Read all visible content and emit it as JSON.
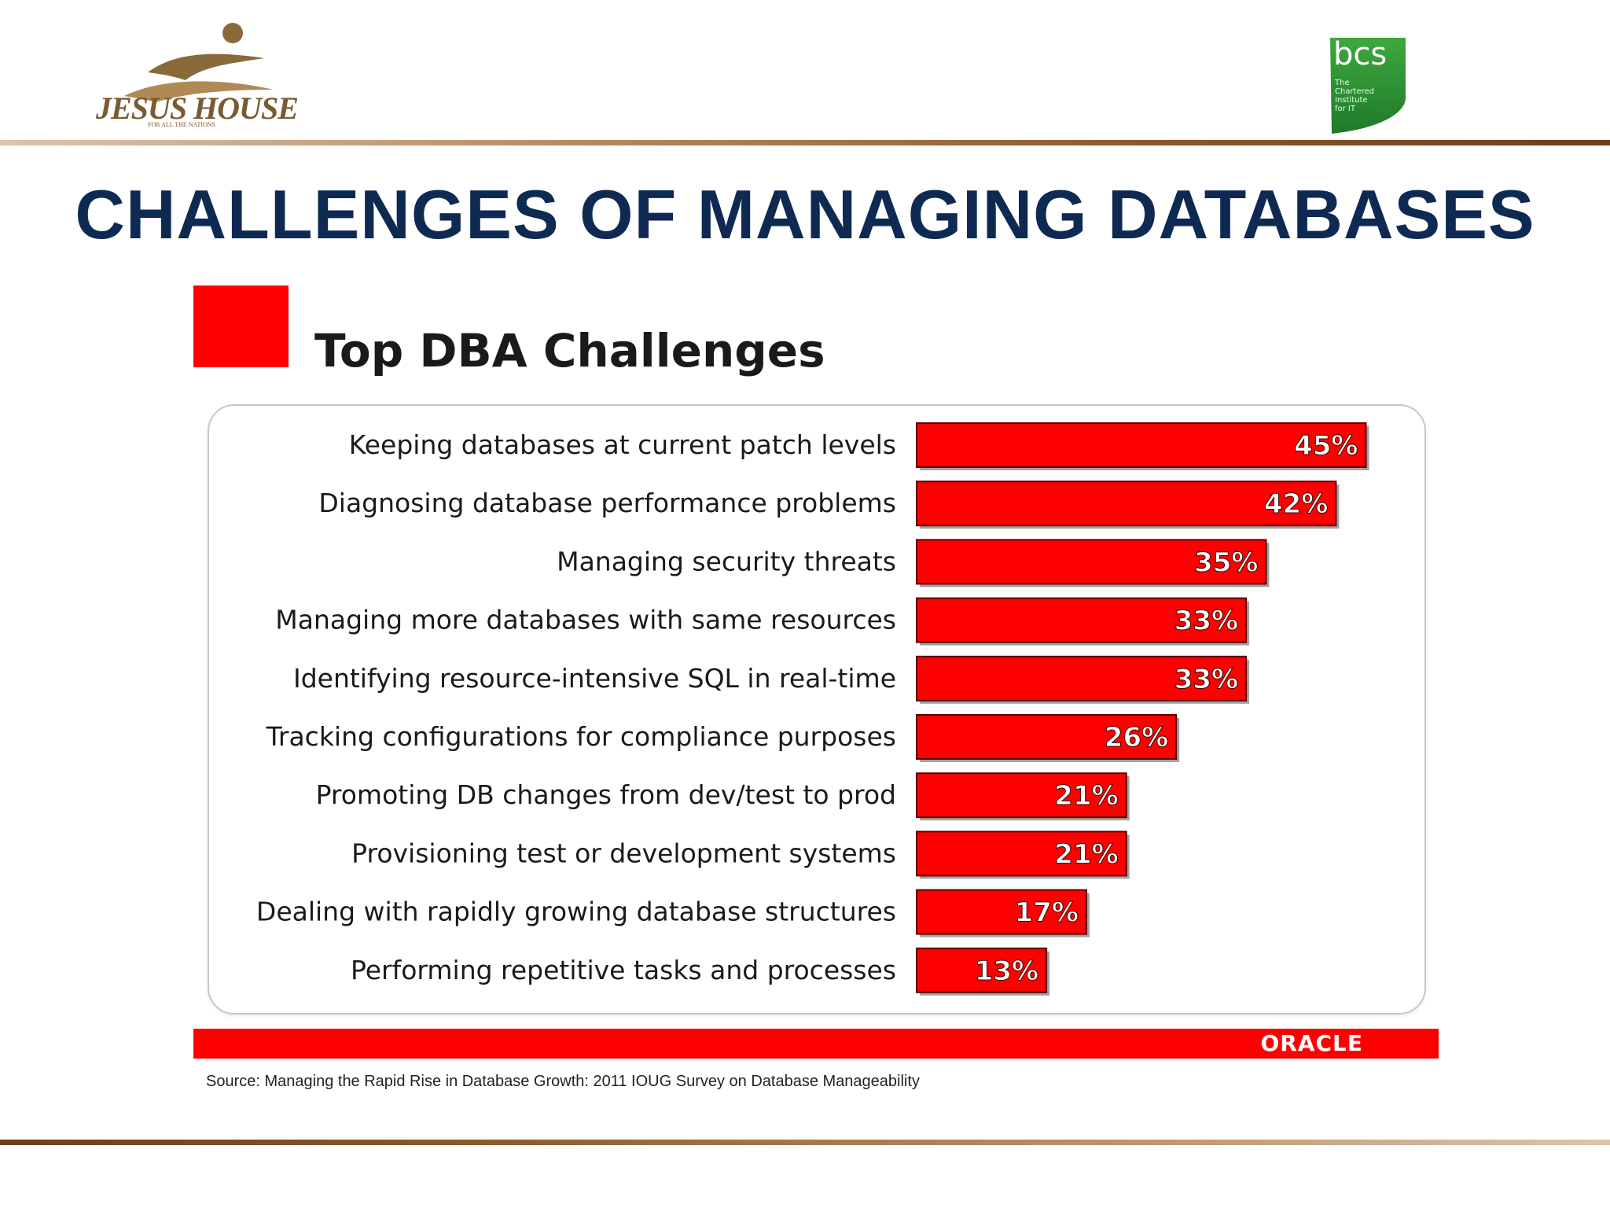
{
  "slide": {
    "title": "CHALLENGES OF MANAGING DATABASES",
    "logo_left_text": "JESUS HOUSE",
    "logo_left_tagline": "FOR ALL THE NATIONS",
    "logo_right_text": "bcs",
    "logo_right_sub": [
      "The",
      "Chartered",
      "Institute",
      "for IT"
    ],
    "footer_brand": "ORACLE",
    "source": "Source: Managing the Rapid Rise in Database Growth: 2011 IOUG Survey on Database Manageability"
  },
  "colors": {
    "title": "#0f2a52",
    "bar": "#ff0000",
    "accent_red": "#ff0000",
    "rule_brown": "#8c5a2e",
    "bcs_green": "#3a9a3a"
  },
  "chart_data": {
    "type": "bar",
    "orientation": "horizontal",
    "title": "Top DBA Challenges",
    "categories": [
      "Keeping databases at current patch levels",
      "Diagnosing database performance problems",
      "Managing security threats",
      "Managing more databases with same resources",
      "Identifying resource-intensive SQL in real-time",
      "Tracking configurations for compliance purposes",
      "Promoting DB changes from dev/test to prod",
      "Provisioning test or development systems",
      "Dealing with rapidly growing database structures",
      "Performing repetitive tasks and processes"
    ],
    "values": [
      45,
      42,
      35,
      33,
      33,
      26,
      21,
      21,
      17,
      13
    ],
    "value_labels": [
      "45%",
      "42%",
      "35%",
      "33%",
      "33%",
      "26%",
      "21%",
      "21%",
      "17%",
      "13%"
    ],
    "unit": "%",
    "grid": false,
    "legend": "none"
  }
}
